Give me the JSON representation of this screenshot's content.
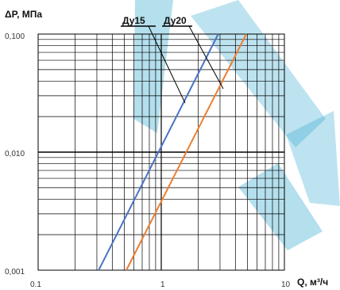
{
  "chart_data": {
    "type": "line",
    "title": "",
    "ylabel": "ΔP, МПа",
    "xlabel": "Q, м³/ч",
    "x_scale": "log",
    "y_scale": "log",
    "xlim": [
      0.1,
      10
    ],
    "ylim": [
      0.001,
      0.1
    ],
    "grid": true,
    "x_tick_labels": [
      "0.1",
      "1",
      "10"
    ],
    "y_tick_labels": [
      "0,100",
      "0,010",
      "0,001"
    ],
    "series": [
      {
        "name": "Ду15",
        "color": "#4a72c4",
        "x": [
          0.31,
          2.9
        ],
        "y": [
          0.001,
          0.1
        ]
      },
      {
        "name": "Ду20",
        "color": "#ed7d31",
        "x": [
          0.52,
          4.9
        ],
        "y": [
          0.001,
          0.1
        ]
      }
    ],
    "watermark_color": "#29a3cc"
  }
}
